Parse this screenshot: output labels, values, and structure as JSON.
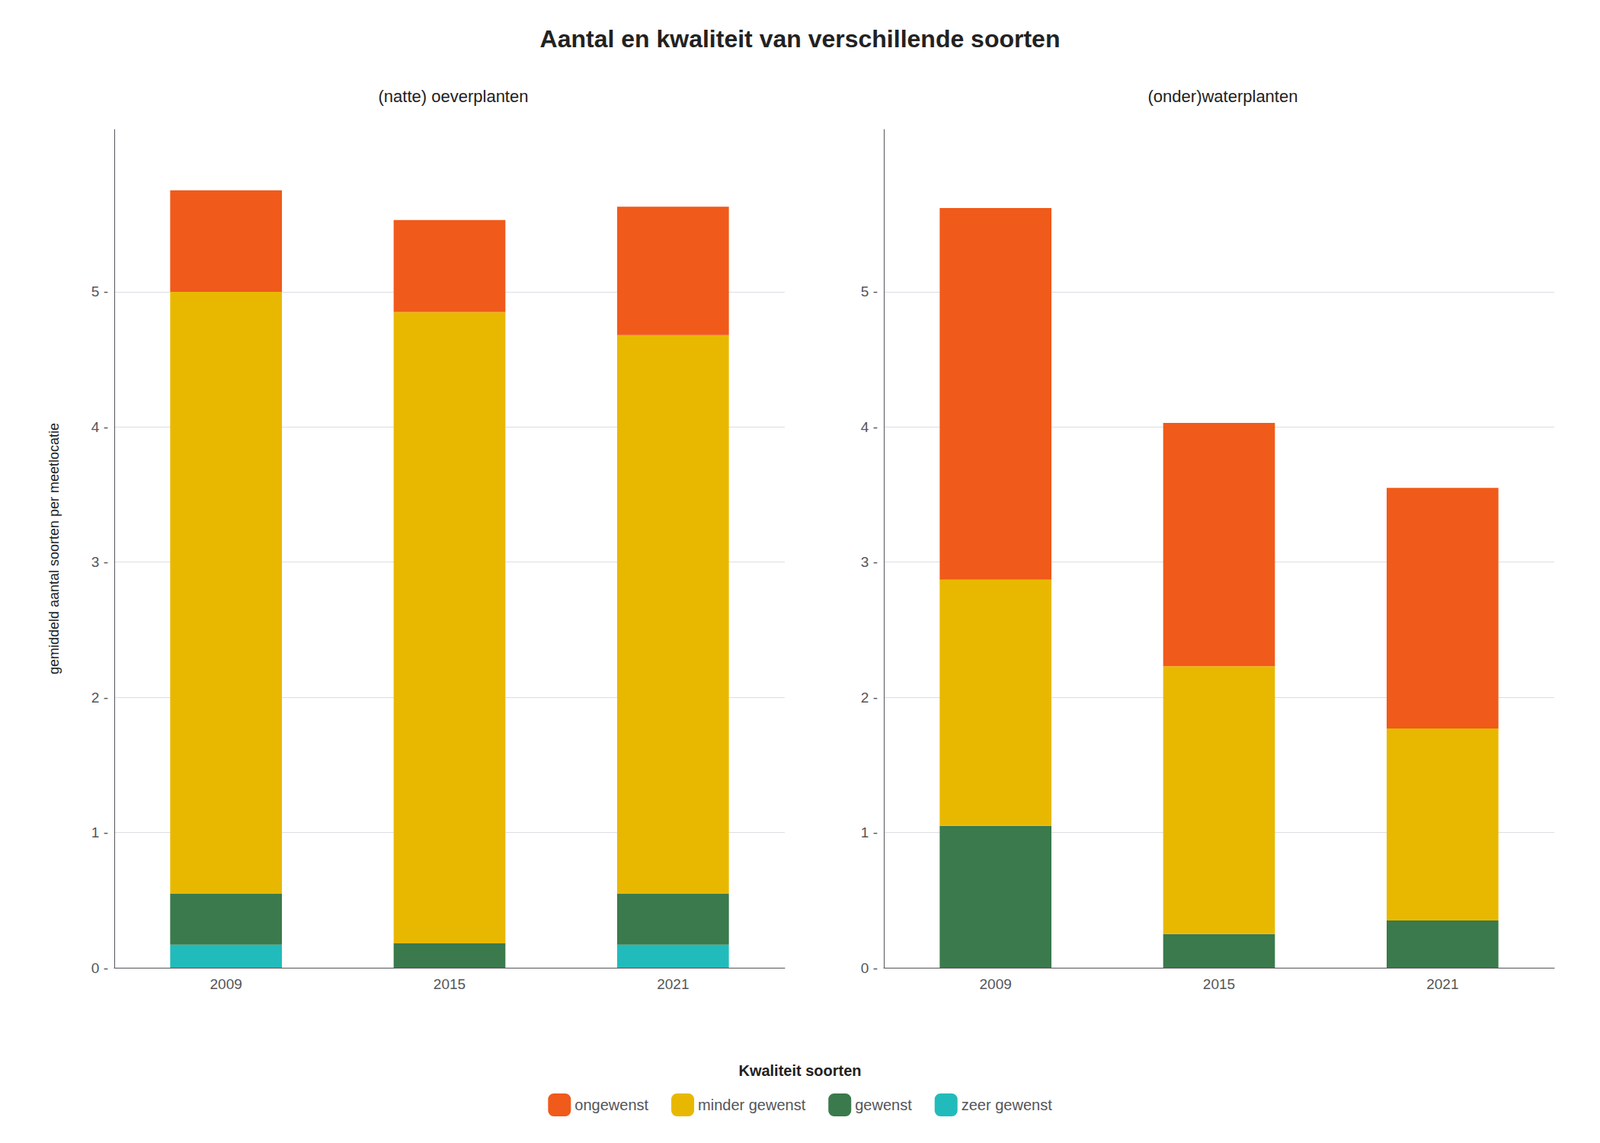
{
  "title": "Aantal en kwaliteit van verschillende soorten",
  "ylabel": "gemiddeld aantal soorten per meetlocatie",
  "legend_title": "Kwaliteit soorten",
  "legend_labels": [
    "ongewenst",
    "minder gewenst",
    "gewenst",
    "zeer gewenst"
  ],
  "legend": "bottom",
  "chart_data": [
    {
      "type": "bar",
      "stacked": true,
      "title": "(natte) oeverplanten",
      "categories": [
        "2009",
        "2015",
        "2021"
      ],
      "series": [
        {
          "name": "zeer gewenst",
          "color": "#22BBBB",
          "values": [
            0.17,
            0.0,
            0.17
          ]
        },
        {
          "name": "gewenst",
          "color": "#3A7A4C",
          "values": [
            0.38,
            0.18,
            0.38
          ]
        },
        {
          "name": "minder gewenst",
          "color": "#E8B800",
          "values": [
            4.45,
            4.67,
            4.13
          ]
        },
        {
          "name": "ongewenst",
          "color": "#F05A1A",
          "values": [
            0.75,
            0.68,
            0.95
          ]
        }
      ],
      "ylim": [
        0,
        6.2
      ],
      "yticks": [
        {
          "value": 0,
          "label": "0 -"
        },
        {
          "value": 1,
          "label": "1 -"
        },
        {
          "value": 2,
          "label": "2 -"
        },
        {
          "value": 3,
          "label": "3 -"
        },
        {
          "value": 4,
          "label": "4 -"
        },
        {
          "value": 5,
          "label": "5 -"
        }
      ],
      "grid": true
    },
    {
      "type": "bar",
      "stacked": true,
      "title": "(onder)waterplanten",
      "categories": [
        "2009",
        "2015",
        "2021"
      ],
      "series": [
        {
          "name": "zeer gewenst",
          "color": "#22BBBB",
          "values": [
            0.0,
            0.0,
            0.0
          ]
        },
        {
          "name": "gewenst",
          "color": "#3A7A4C",
          "values": [
            1.05,
            0.25,
            0.35
          ]
        },
        {
          "name": "minder gewenst",
          "color": "#E8B800",
          "values": [
            1.82,
            1.98,
            1.42
          ]
        },
        {
          "name": "ongewenst",
          "color": "#F05A1A",
          "values": [
            2.75,
            1.8,
            1.78
          ]
        }
      ],
      "ylim": [
        0,
        6.2
      ],
      "yticks": [
        {
          "value": 0,
          "label": "0 -"
        },
        {
          "value": 1,
          "label": "1 -"
        },
        {
          "value": 2,
          "label": "2 -"
        },
        {
          "value": 3,
          "label": "3 -"
        },
        {
          "value": 4,
          "label": "4 -"
        },
        {
          "value": 5,
          "label": "5 -"
        }
      ],
      "grid": true
    }
  ]
}
